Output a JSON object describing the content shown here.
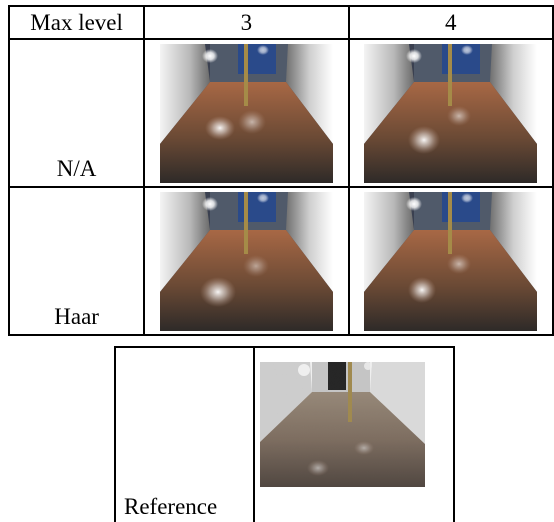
{
  "table": {
    "header": {
      "label": "Max level",
      "cols": [
        "3",
        "4"
      ]
    },
    "rows": [
      {
        "label": "N/A"
      },
      {
        "label": "Haar"
      }
    ]
  },
  "reference": {
    "label": "Reference"
  }
}
